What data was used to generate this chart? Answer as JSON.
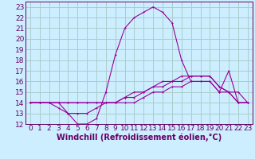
{
  "xlabel": "Windchill (Refroidissement éolien,°C)",
  "ylabel": "",
  "bg_color": "#cceeff",
  "grid_color": "#aacccc",
  "line_color": "#990099",
  "hours": [
    0,
    1,
    2,
    3,
    4,
    5,
    6,
    7,
    8,
    9,
    10,
    11,
    12,
    13,
    14,
    15,
    16,
    17,
    18,
    19,
    20,
    21,
    22,
    23
  ],
  "line1": [
    14,
    14,
    14,
    14,
    13,
    12,
    12,
    12.5,
    15,
    18.5,
    21,
    22,
    22.5,
    23,
    22.5,
    21.5,
    18,
    16,
    16,
    16,
    15,
    17,
    14,
    14
  ],
  "line2": [
    14,
    14,
    14,
    14,
    14,
    14,
    14,
    14,
    14,
    14,
    14.5,
    15,
    15,
    15.5,
    16,
    16,
    16.5,
    16.5,
    16.5,
    16.5,
    15.5,
    15,
    14,
    14
  ],
  "line3": [
    14,
    14,
    14,
    13.5,
    13,
    13,
    13,
    13.5,
    14,
    14,
    14.5,
    14.5,
    15,
    15.5,
    15.5,
    16,
    16,
    16.5,
    16.5,
    16.5,
    15.5,
    15,
    14,
    14
  ],
  "line4": [
    14,
    14,
    14,
    14,
    14,
    14,
    14,
    14,
    14,
    14,
    14,
    14,
    14.5,
    15,
    15,
    15.5,
    15.5,
    16,
    16,
    16,
    15,
    15,
    15,
    14
  ],
  "xlim": [
    -0.5,
    23.5
  ],
  "ylim": [
    12,
    23.5
  ],
  "yticks": [
    12,
    13,
    14,
    15,
    16,
    17,
    18,
    19,
    20,
    21,
    22,
    23
  ],
  "xticks": [
    0,
    1,
    2,
    3,
    4,
    5,
    6,
    7,
    8,
    9,
    10,
    11,
    12,
    13,
    14,
    15,
    16,
    17,
    18,
    19,
    20,
    21,
    22,
    23
  ],
  "font_color": "#660066",
  "font_size": 6.5,
  "xlabel_fontsize": 7.0
}
